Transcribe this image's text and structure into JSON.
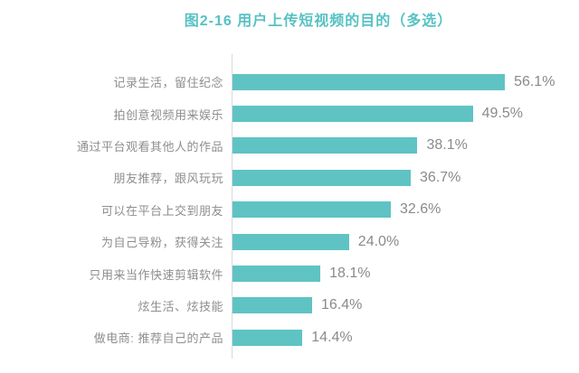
{
  "chart_data": {
    "type": "bar",
    "orientation": "horizontal",
    "title": "图2-16  用户上传短视频的目的（多选）",
    "categories": [
      "记录生活，留住纪念",
      "拍创意视频用来娱乐",
      "通过平台观看其他人的作品",
      "朋友推荐，跟风玩玩",
      "可以在平台上交到朋友",
      "为自己导粉，获得关注",
      "只用来当作快速剪辑软件",
      "炫生活、炫技能",
      "做电商: 推荐自己的产品"
    ],
    "values": [
      56.1,
      49.5,
      38.1,
      36.7,
      32.6,
      24.0,
      18.1,
      16.4,
      14.4
    ],
    "value_labels": [
      "56.1%",
      "49.5%",
      "38.1%",
      "36.7%",
      "32.6%",
      "24.0%",
      "18.1%",
      "16.4%",
      "14.4%"
    ],
    "xlabel": "",
    "ylabel": "",
    "xlim": [
      0,
      60
    ],
    "grid": false,
    "legend_position": "none"
  },
  "colors": {
    "bar": "#5fc3c4",
    "title": "#56c1c3",
    "label": "#8e8e8e",
    "value": "#8a8a8a",
    "axis": "#d9d9d9",
    "background": "#ffffff"
  }
}
